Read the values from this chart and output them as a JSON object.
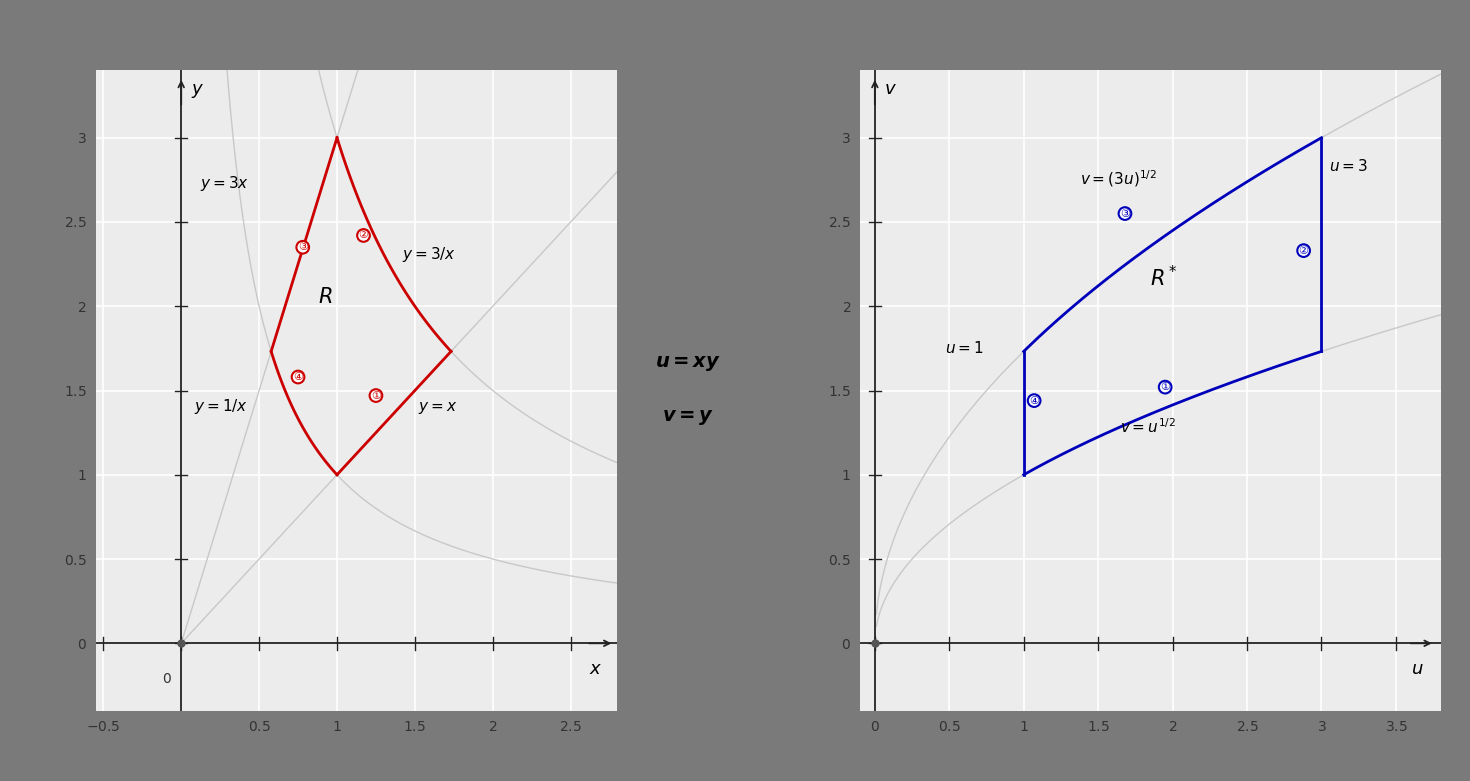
{
  "bg_color": "#7a7a7a",
  "plot_bg": "#ececec",
  "left_xlim": [
    -0.55,
    2.8
  ],
  "left_ylim": [
    -0.4,
    3.4
  ],
  "right_xlim": [
    -0.1,
    3.8
  ],
  "right_ylim": [
    -0.4,
    3.4
  ],
  "left_xticks": [
    -0.5,
    0.0,
    0.5,
    1.0,
    1.5,
    2.0,
    2.5
  ],
  "left_yticks": [
    0.0,
    0.5,
    1.0,
    1.5,
    2.0,
    2.5,
    3.0
  ],
  "right_xticks": [
    0.0,
    0.5,
    1.0,
    1.5,
    2.0,
    2.5,
    3.0,
    3.5
  ],
  "right_yticks": [
    0.0,
    0.5,
    1.0,
    1.5,
    2.0,
    2.5,
    3.0
  ],
  "red_color": "#cc0000",
  "blue_color": "#0000bb",
  "gray_curve_color": "#c8c8c8",
  "axis_color": "#222222",
  "tick_label_color": "#333333"
}
